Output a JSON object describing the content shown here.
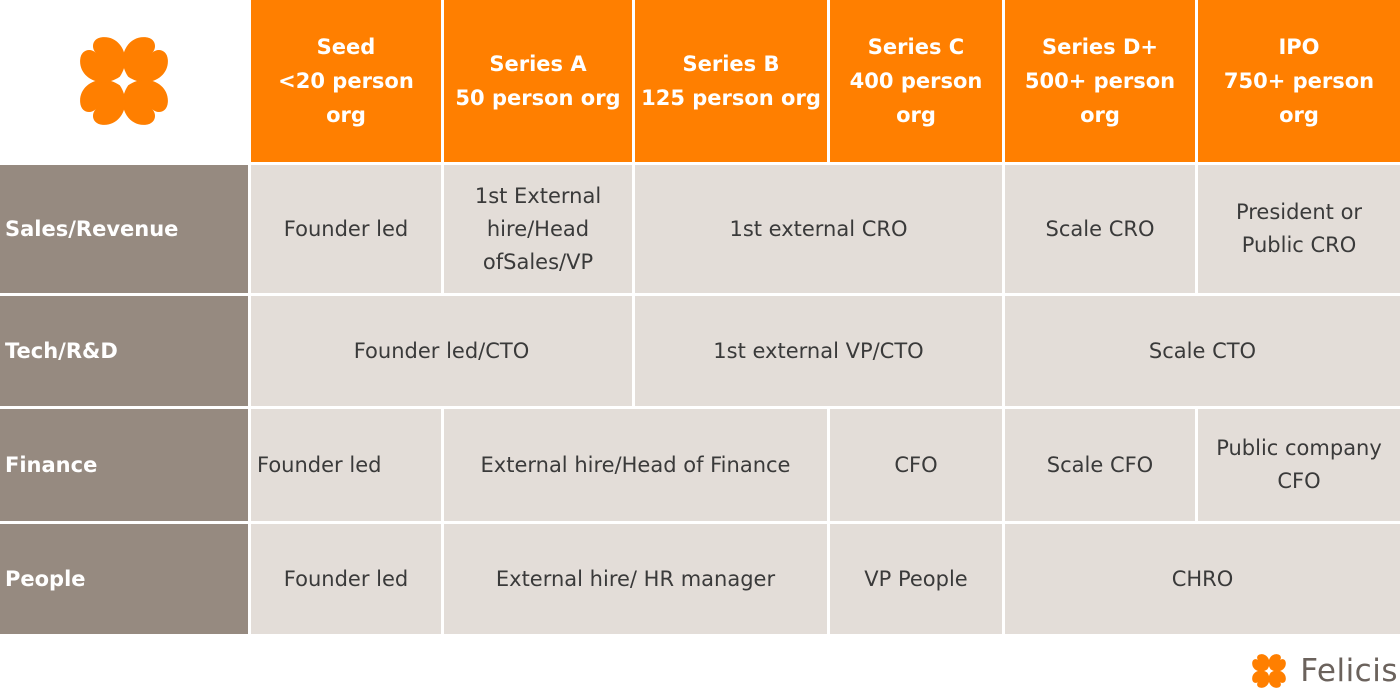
{
  "brand": {
    "name": "Felicis",
    "accent": "#ff7f00",
    "label_bg": "#968a80",
    "cell_bg": "#e3ddd8",
    "logo_icon": "four-leaf-clover-icon"
  },
  "headers": [
    "Seed\n<20 person org",
    "Series A\n50 person org",
    "Series B\n125 person org",
    "Series C\n400 person\norg",
    "Series D+\n500+ person\norg",
    "IPO\n750+ person org"
  ],
  "rows": {
    "sales": {
      "label": "Sales/Revenue",
      "cells": [
        "Founder led",
        "1st External\nhire/Head\nofSales/VP",
        "1st external CRO",
        "Scale CRO",
        "President or\nPublic CRO"
      ]
    },
    "tech": {
      "label": "Tech/R&D",
      "cells": [
        "Founder led/CTO",
        "1st external VP/CTO",
        "Scale CTO"
      ]
    },
    "finance": {
      "label": "Finance",
      "cells": [
        "Founder led",
        "External hire/Head of Finance",
        "CFO",
        "Scale CFO",
        "Public company\nCFO"
      ]
    },
    "people": {
      "label": "People",
      "cells": [
        "Founder led",
        "External hire/ HR manager",
        "VP People",
        "CHRO"
      ]
    }
  }
}
